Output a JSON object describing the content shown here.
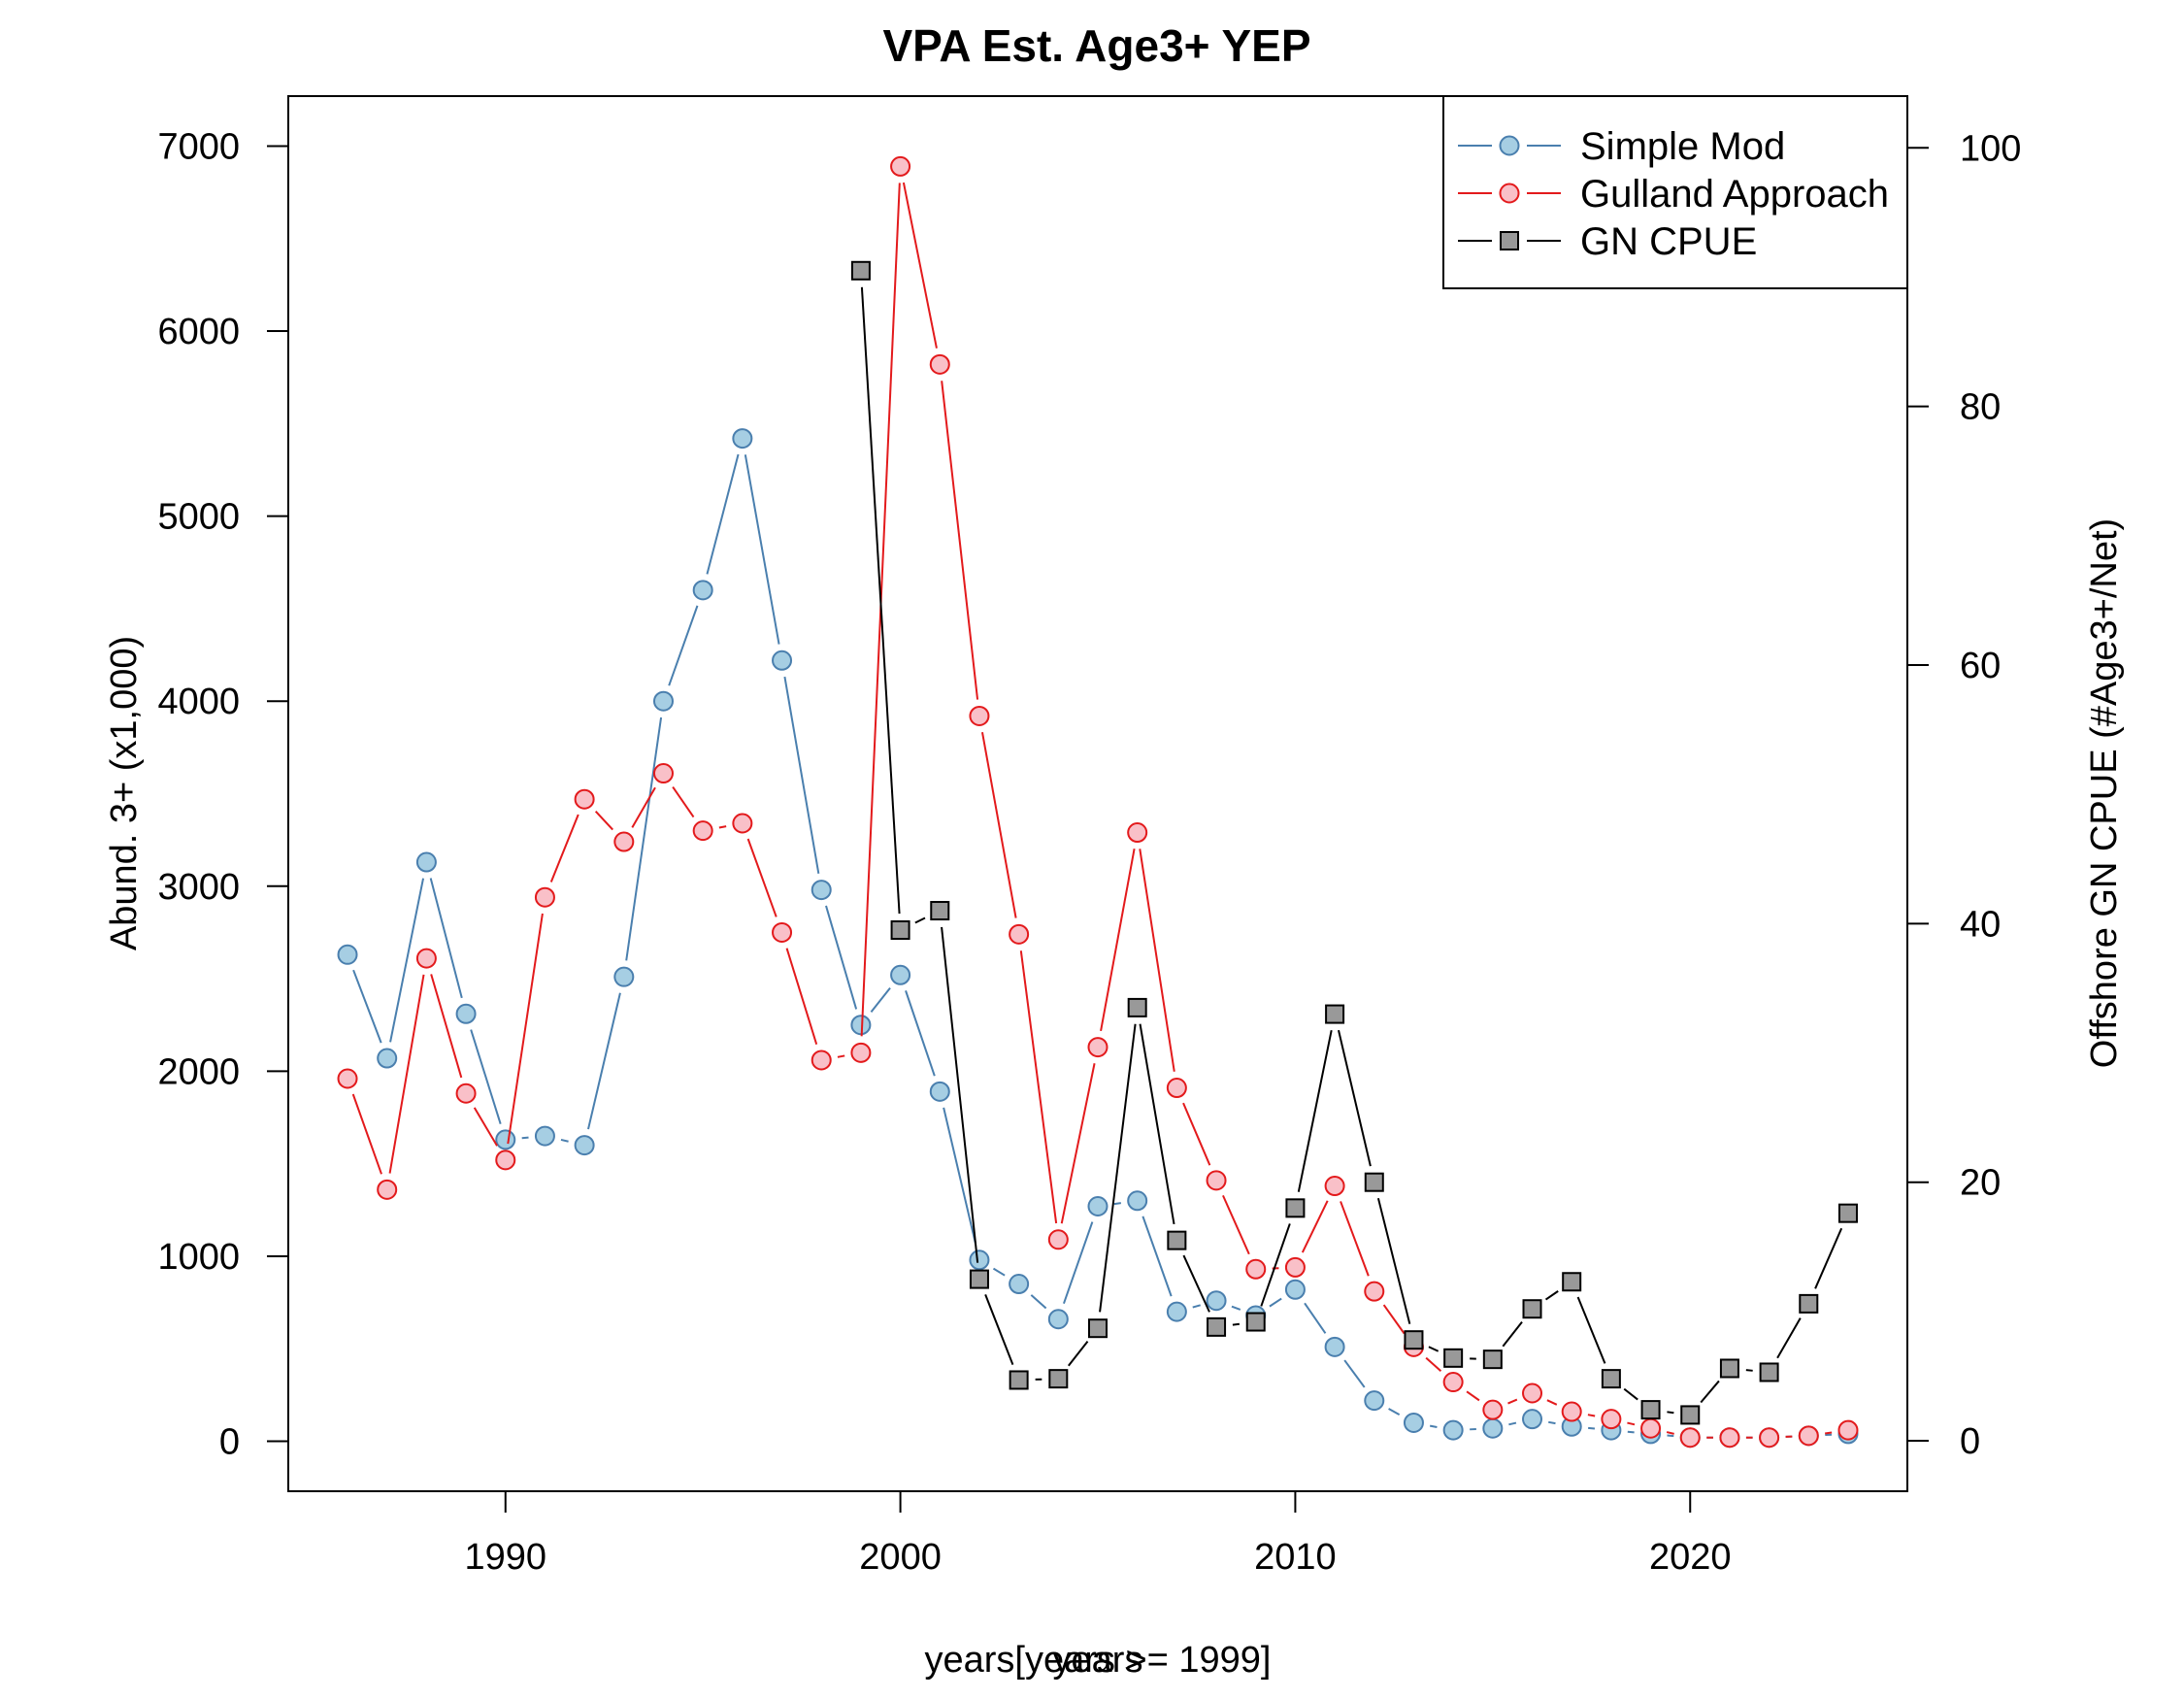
{
  "chart_data": {
    "type": "line",
    "title": "VPA Est. Age3+ YEP",
    "xlabel": "years[years >= 1999]",
    "xlabel_overprint": "years",
    "ylabel": "Abund. 3+ (x1,000)",
    "y2label": "Offshore GN CPUE (#Age3+/Net)",
    "xlim": [
      1984.5,
      2025.5
    ],
    "ylim": [
      -270,
      7270
    ],
    "y2lim": [
      -3.9,
      104
    ],
    "xticks": [
      1990,
      2000,
      2010,
      2020
    ],
    "yticks": [
      0,
      1000,
      2000,
      3000,
      4000,
      5000,
      6000,
      7000
    ],
    "y2ticks": [
      0,
      20,
      40,
      60,
      80,
      100
    ],
    "legend_position": "top-right",
    "series": [
      {
        "name": "Simple Mod",
        "axis": "left",
        "marker": "circle",
        "color": "#4a7fae",
        "fill": "#a6cee3",
        "x": [
          1986,
          1987,
          1988,
          1989,
          1990,
          1991,
          1992,
          1993,
          1994,
          1995,
          1996,
          1997,
          1998,
          1999,
          2000,
          2001,
          2002,
          2003,
          2004,
          2005,
          2006,
          2007,
          2008,
          2009,
          2010,
          2011,
          2012,
          2013,
          2014,
          2015,
          2016,
          2017,
          2018,
          2019,
          2020,
          2021,
          2022,
          2023,
          2024
        ],
        "values": [
          2630,
          2070,
          3130,
          2310,
          1630,
          1650,
          1600,
          2510,
          4000,
          4600,
          5420,
          4220,
          2980,
          2250,
          2520,
          1890,
          980,
          850,
          660,
          1270,
          1300,
          700,
          760,
          680,
          820,
          510,
          220,
          100,
          60,
          70,
          120,
          80,
          60,
          40,
          20,
          20,
          20,
          30,
          40
        ]
      },
      {
        "name": "Gulland Approach",
        "axis": "left",
        "marker": "circle",
        "color": "#e31a1c",
        "fill": "#f9c0c8",
        "x": [
          1986,
          1987,
          1988,
          1989,
          1990,
          1991,
          1992,
          1993,
          1994,
          1995,
          1996,
          1997,
          1998,
          1999,
          2000,
          2001,
          2002,
          2003,
          2004,
          2005,
          2006,
          2007,
          2008,
          2009,
          2010,
          2011,
          2012,
          2013,
          2014,
          2015,
          2016,
          2017,
          2018,
          2019,
          2020,
          2021,
          2022,
          2023,
          2024
        ],
        "values": [
          1960,
          1360,
          2610,
          1880,
          1520,
          2940,
          3470,
          3240,
          3610,
          3300,
          3340,
          2750,
          2060,
          2100,
          6890,
          5820,
          3920,
          2740,
          1090,
          2130,
          3290,
          1910,
          1410,
          930,
          940,
          1380,
          810,
          510,
          320,
          170,
          260,
          160,
          120,
          70,
          20,
          20,
          20,
          30,
          60
        ]
      },
      {
        "name": "GN CPUE",
        "axis": "right",
        "marker": "square",
        "color": "#000000",
        "fill": "#999999",
        "x": [
          1999,
          2000,
          2001,
          2002,
          2003,
          2004,
          2005,
          2006,
          2007,
          2008,
          2009,
          2010,
          2011,
          2012,
          2013,
          2014,
          2015,
          2016,
          2017,
          2018,
          2019,
          2020,
          2021,
          2022,
          2023,
          2024
        ],
        "values": [
          90.5,
          39.5,
          41,
          12.5,
          4.7,
          4.8,
          8.7,
          33.5,
          15.5,
          8.8,
          9.2,
          18,
          33,
          20,
          7.8,
          6.4,
          6.3,
          10.2,
          12.3,
          4.8,
          2.4,
          2,
          5.6,
          5.3,
          10.6,
          17.6
        ]
      }
    ]
  }
}
